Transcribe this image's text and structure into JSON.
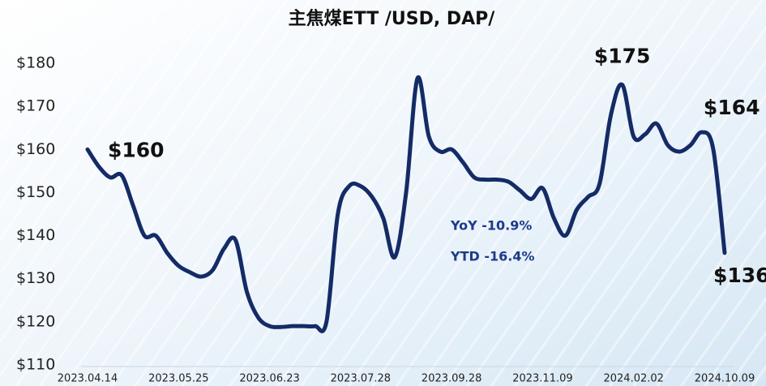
{
  "chart_data": {
    "type": "line",
    "title": "主焦煤ETT /USD, DAP/",
    "categories": [
      "2023.04.14",
      null,
      null,
      null,
      null,
      null,
      null,
      null,
      "2023.05.25",
      null,
      null,
      null,
      null,
      null,
      null,
      null,
      "2023.06.23",
      null,
      null,
      null,
      null,
      null,
      null,
      null,
      "2023.07.28",
      null,
      null,
      null,
      null,
      null,
      null,
      null,
      "2023.09.28",
      null,
      null,
      null,
      null,
      null,
      null,
      null,
      "2023.11.09",
      null,
      null,
      null,
      null,
      null,
      null,
      null,
      "2024.02.02",
      null,
      null,
      null,
      null,
      null,
      null,
      null,
      "2024.10.09"
    ],
    "series": [
      {
        "name": "主焦煤ETT",
        "color": "#142b66",
        "values": [
          160,
          156,
          153.5,
          154,
          147,
          140,
          140,
          136,
          133,
          131.5,
          130.5,
          132,
          137,
          139,
          127,
          121,
          119,
          118.8,
          119,
          119,
          119,
          120,
          145,
          151.5,
          151.5,
          149,
          144,
          135,
          150,
          176.5,
          163,
          159.5,
          160,
          157,
          153.5,
          153,
          153,
          152.5,
          150.5,
          148.5,
          151,
          144,
          140,
          146,
          149,
          152,
          168,
          175,
          163,
          163.5,
          166,
          161,
          159.5,
          161,
          164,
          160,
          136
        ],
        "value_labels": [
          "$160",
          null,
          null,
          null,
          null,
          null,
          null,
          null,
          null,
          null,
          null,
          null,
          null,
          null,
          null,
          null,
          null,
          null,
          null,
          null,
          null,
          null,
          null,
          null,
          null,
          null,
          null,
          null,
          null,
          null,
          null,
          null,
          null,
          null,
          null,
          null,
          null,
          null,
          null,
          null,
          null,
          null,
          null,
          null,
          null,
          null,
          null,
          "$175",
          null,
          null,
          null,
          null,
          null,
          null,
          "$164",
          null,
          "$136"
        ]
      }
    ],
    "annotations": [
      "YoY -10.9%",
      "YTD -16.4%"
    ],
    "ylim": [
      110,
      180
    ],
    "yticks": [
      {
        "value": 110,
        "label": "$110"
      },
      {
        "value": 120,
        "label": "$120"
      },
      {
        "value": 130,
        "label": "$130"
      },
      {
        "value": 140,
        "label": "$140"
      },
      {
        "value": 150,
        "label": "$150"
      },
      {
        "value": 160,
        "label": "$160"
      },
      {
        "value": 170,
        "label": "$170"
      },
      {
        "value": 180,
        "label": "$180"
      }
    ],
    "grid": false
  }
}
